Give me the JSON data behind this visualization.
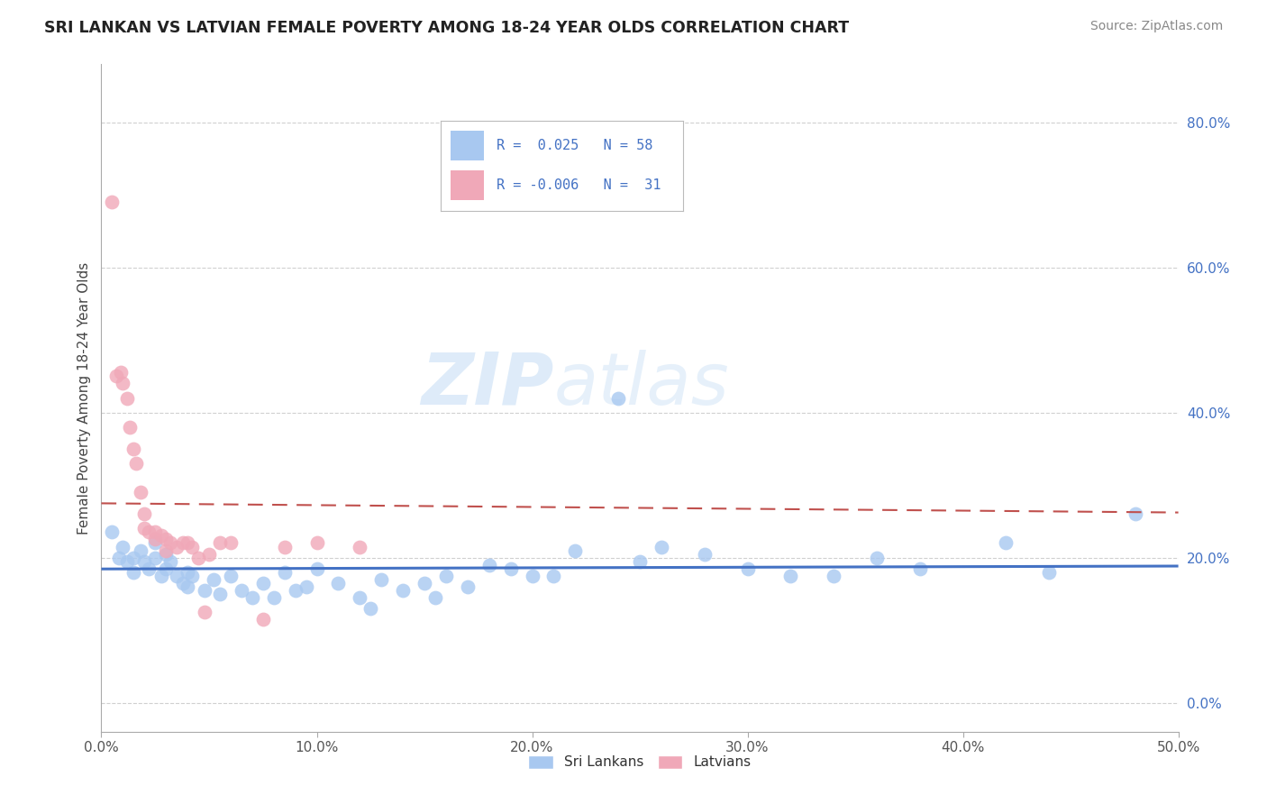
{
  "title": "SRI LANKAN VS LATVIAN FEMALE POVERTY AMONG 18-24 YEAR OLDS CORRELATION CHART",
  "source": "Source: ZipAtlas.com",
  "ylabel": "Female Poverty Among 18-24 Year Olds",
  "xlim": [
    0.0,
    0.5
  ],
  "ylim": [
    -0.04,
    0.88
  ],
  "xticks": [
    0.0,
    0.1,
    0.2,
    0.3,
    0.4,
    0.5
  ],
  "xticklabels": [
    "0.0%",
    "10.0%",
    "20.0%",
    "30.0%",
    "40.0%",
    "50.0%"
  ],
  "yticks_right": [
    0.0,
    0.2,
    0.4,
    0.6,
    0.8
  ],
  "yticklabels_right": [
    "0.0%",
    "20.0%",
    "40.0%",
    "60.0%",
    "80.0%"
  ],
  "sri_lankan_R": 0.025,
  "sri_lankan_N": 58,
  "latvian_R": -0.006,
  "latvian_N": 31,
  "sri_lankan_color": "#a8c8f0",
  "latvian_color": "#f0a8b8",
  "sri_lankan_line_color": "#4472c4",
  "latvian_line_color": "#c0504d",
  "watermark_zip": "ZIP",
  "watermark_atlas": "atlas",
  "grid_color": "#d0d0d0",
  "sri_lankans_x": [
    0.005,
    0.008,
    0.01,
    0.012,
    0.015,
    0.015,
    0.018,
    0.02,
    0.022,
    0.025,
    0.025,
    0.028,
    0.03,
    0.03,
    0.032,
    0.035,
    0.038,
    0.04,
    0.04,
    0.042,
    0.048,
    0.052,
    0.055,
    0.06,
    0.065,
    0.07,
    0.075,
    0.08,
    0.085,
    0.09,
    0.095,
    0.1,
    0.11,
    0.12,
    0.125,
    0.13,
    0.14,
    0.15,
    0.155,
    0.16,
    0.17,
    0.18,
    0.19,
    0.2,
    0.21,
    0.22,
    0.24,
    0.25,
    0.26,
    0.28,
    0.3,
    0.32,
    0.34,
    0.36,
    0.38,
    0.42,
    0.44,
    0.48
  ],
  "sri_lankans_y": [
    0.235,
    0.2,
    0.215,
    0.195,
    0.2,
    0.18,
    0.21,
    0.195,
    0.185,
    0.22,
    0.2,
    0.175,
    0.205,
    0.185,
    0.195,
    0.175,
    0.165,
    0.18,
    0.16,
    0.175,
    0.155,
    0.17,
    0.15,
    0.175,
    0.155,
    0.145,
    0.165,
    0.145,
    0.18,
    0.155,
    0.16,
    0.185,
    0.165,
    0.145,
    0.13,
    0.17,
    0.155,
    0.165,
    0.145,
    0.175,
    0.16,
    0.19,
    0.185,
    0.175,
    0.175,
    0.21,
    0.42,
    0.195,
    0.215,
    0.205,
    0.185,
    0.175,
    0.175,
    0.2,
    0.185,
    0.22,
    0.18,
    0.26
  ],
  "latvians_x": [
    0.005,
    0.007,
    0.009,
    0.01,
    0.012,
    0.013,
    0.015,
    0.016,
    0.018,
    0.02,
    0.02,
    0.022,
    0.025,
    0.025,
    0.028,
    0.03,
    0.03,
    0.032,
    0.035,
    0.038,
    0.04,
    0.042,
    0.045,
    0.048,
    0.05,
    0.055,
    0.06,
    0.075,
    0.085,
    0.1,
    0.12
  ],
  "latvians_y": [
    0.69,
    0.45,
    0.455,
    0.44,
    0.42,
    0.38,
    0.35,
    0.33,
    0.29,
    0.26,
    0.24,
    0.235,
    0.235,
    0.225,
    0.23,
    0.21,
    0.225,
    0.22,
    0.215,
    0.22,
    0.22,
    0.215,
    0.2,
    0.125,
    0.205,
    0.22,
    0.22,
    0.115,
    0.215,
    0.22,
    0.215
  ]
}
